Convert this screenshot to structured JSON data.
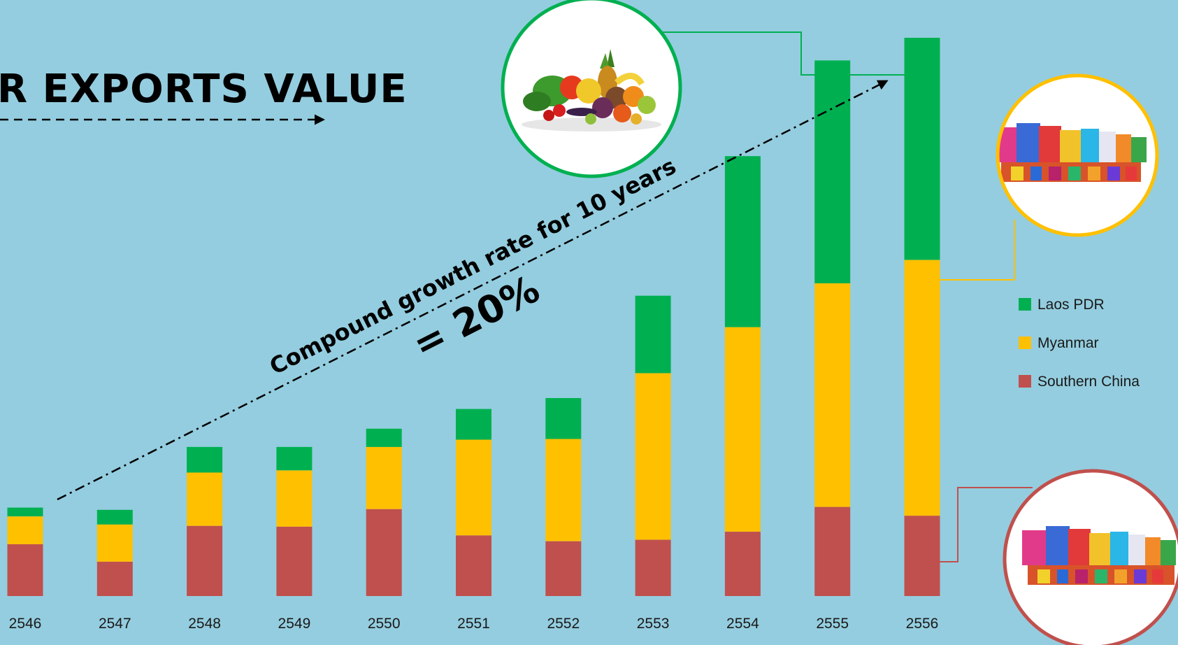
{
  "colors": {
    "background": "#94CDDF",
    "laos": "#00B050",
    "myanmar": "#FFC000",
    "china": "#C0504D",
    "axis_text": "#1a1a1a"
  },
  "chart_data": {
    "type": "bar",
    "stacked": true,
    "title": "R EXPORTS VALUE",
    "xlabel": "",
    "ylabel": "",
    "categories": [
      "2546",
      "2547",
      "2548",
      "2549",
      "2550",
      "2551",
      "2552",
      "2553",
      "2554",
      "2555",
      "2556"
    ],
    "series": [
      {
        "name": "Southern China",
        "color_key": "china",
        "values": [
          7.1,
          4.7,
          9.6,
          9.5,
          11.9,
          8.3,
          7.5,
          7.7,
          8.8,
          12.2,
          11.0
        ]
      },
      {
        "name": "Myanmar",
        "color_key": "myanmar",
        "values": [
          3.8,
          5.1,
          7.3,
          7.7,
          8.5,
          13.1,
          14.0,
          22.8,
          28.0,
          30.6,
          35.0
        ]
      },
      {
        "name": "Laos PDR",
        "color_key": "laos",
        "values": [
          1.2,
          2.0,
          3.5,
          3.2,
          2.5,
          4.2,
          5.6,
          10.6,
          23.4,
          30.5,
          30.4
        ]
      }
    ],
    "ylim": [
      0,
      81
    ],
    "grid": false,
    "legend_position": "right",
    "annotation": {
      "line1": "Compound growth rate for 10 years",
      "line2": "= 20%"
    }
  },
  "images": {
    "top": {
      "icon": "fruits-vegetables-icon",
      "border_color": "#00B050"
    },
    "middle": {
      "icon": "packaged-goods-icon",
      "border_color": "#FFC000"
    },
    "bottom": {
      "icon": "packaged-goods-icon",
      "border_color": "#C0504D"
    }
  }
}
